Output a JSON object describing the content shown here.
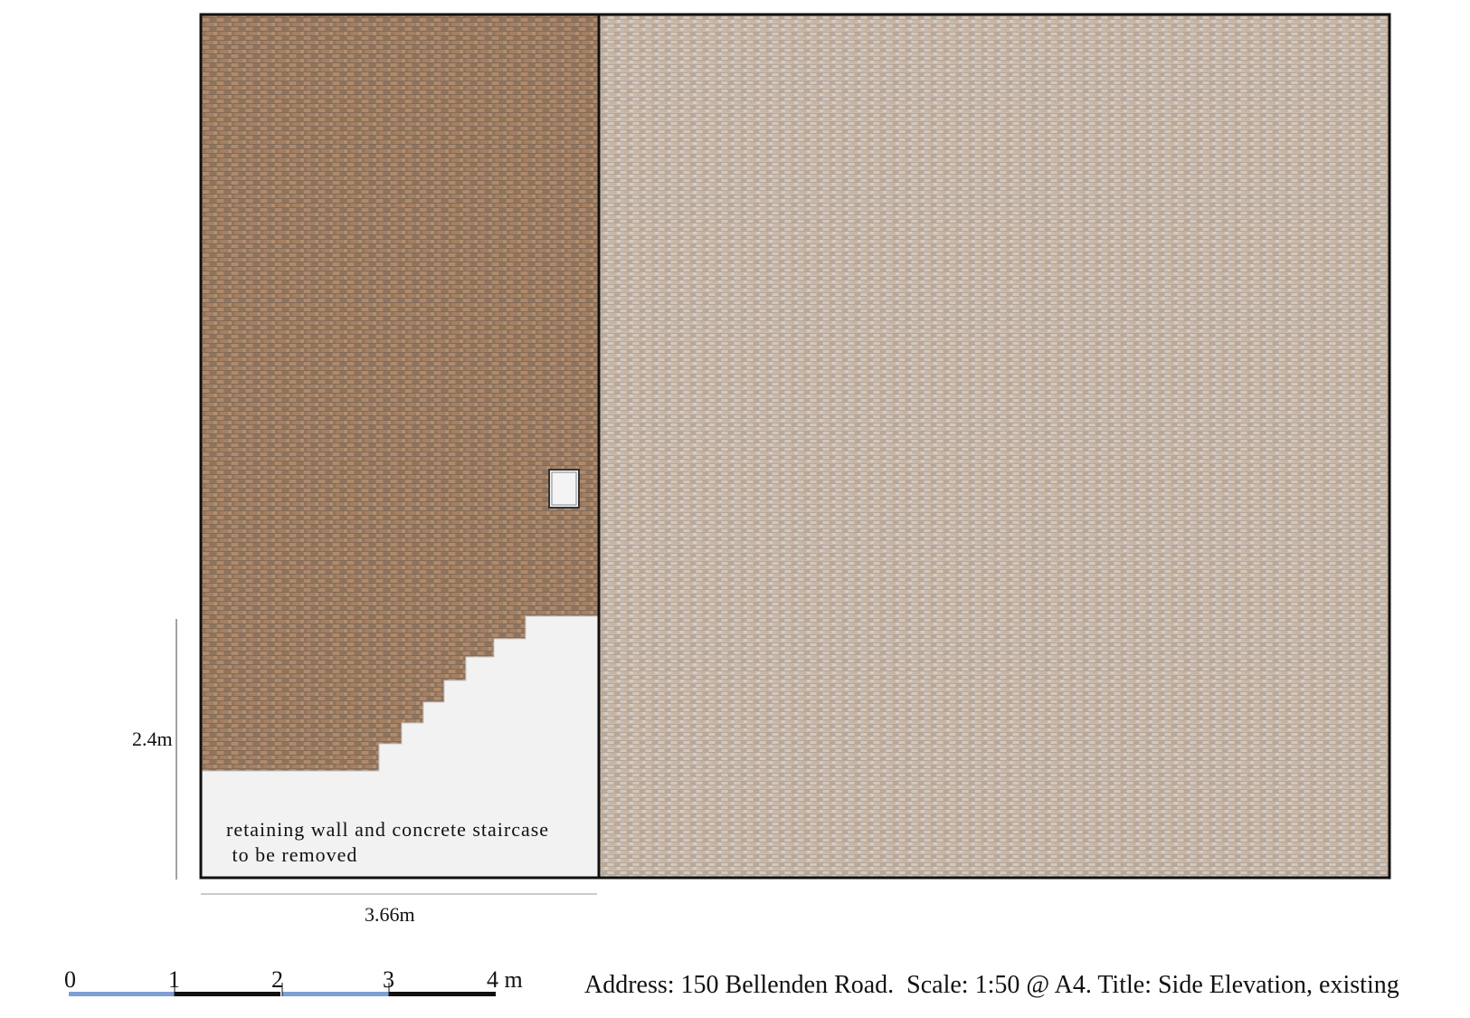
{
  "drawing": {
    "note_line_1": "retaining wall and concrete staircase",
    "note_line_2": " to be removed",
    "height_dimension": "2.4m",
    "width_dimension": "3.66m"
  },
  "scale_bar": {
    "ticks": [
      "0",
      "1",
      "2",
      "3",
      "4 m"
    ],
    "segment_colors": [
      "#7f9fd4",
      "#111111",
      "#7f9fd4",
      "#111111"
    ]
  },
  "caption": "Address: 150 Bellenden Road.  Scale: 1:50 @ A4. Title: Side Elevation, existing",
  "colors": {
    "brick_wall": "#9a7c63",
    "render_wall": "#c7bbb0",
    "concrete": "#f2f2f2",
    "outline": "#111111"
  }
}
